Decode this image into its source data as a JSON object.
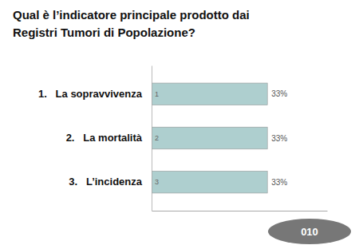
{
  "chart_data": {
    "type": "bar",
    "orientation": "horizontal",
    "title": "Qual è l’indicatore principale prodotto dai",
    "subtitle": "Registri Tumori di Popolazione?",
    "categories": [
      "1.   La sopravvivenza",
      "2.   La mortalità",
      "3.   L’incidenza"
    ],
    "values": [
      33,
      33,
      33
    ],
    "value_labels": [
      "33%",
      "33%",
      "33%"
    ],
    "data_labels": true,
    "color": "#aecfcf",
    "xlim": [
      0,
      50
    ],
    "tick_labels": "y",
    "annotations": [
      {
        "text": "1",
        "category": "1.   La sopravvivenza"
      },
      {
        "text": "2",
        "category": "2.   La mortalità"
      },
      {
        "text": "3",
        "category": "3.   L’incidenza"
      },
      {
        "text": "010"
      }
    ]
  }
}
